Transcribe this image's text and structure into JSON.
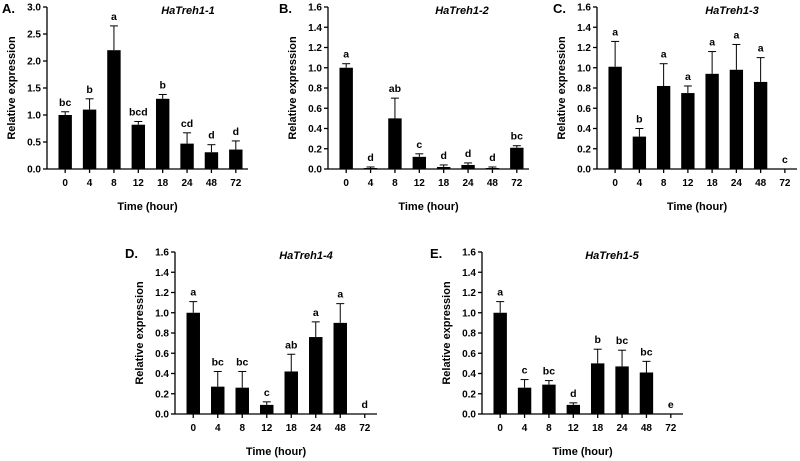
{
  "figure": {
    "xlabel": "Time (hour)",
    "ylabel": "Relative expression"
  },
  "chart_data": [
    {
      "type": "bar",
      "panel": "A.",
      "title": "HaTreh1-1",
      "xlabel": "Time (hour)",
      "ylabel": "Relative expression",
      "categories": [
        "0",
        "4",
        "8",
        "12",
        "18",
        "24",
        "48",
        "72"
      ],
      "values": [
        1.0,
        1.1,
        2.2,
        0.82,
        1.3,
        0.47,
        0.31,
        0.36
      ],
      "errors": [
        0.06,
        0.2,
        0.45,
        0.06,
        0.08,
        0.2,
        0.14,
        0.16
      ],
      "significance": [
        "bc",
        "b",
        "a",
        "bcd",
        "b",
        "cd",
        "d",
        "d"
      ],
      "ylim": [
        0,
        3.0
      ],
      "yticks": [
        "0.0",
        "0.5",
        "1.0",
        "1.5",
        "2.0",
        "2.5",
        "3.0"
      ]
    },
    {
      "type": "bar",
      "panel": "B.",
      "title": "HaTreh1-2",
      "xlabel": "Time (hour)",
      "ylabel": "Relative expression",
      "categories": [
        "0",
        "4",
        "8",
        "12",
        "18",
        "24",
        "48",
        "72"
      ],
      "values": [
        1.0,
        0.01,
        0.5,
        0.12,
        0.02,
        0.04,
        0.01,
        0.21
      ],
      "errors": [
        0.04,
        0.01,
        0.2,
        0.03,
        0.02,
        0.02,
        0.01,
        0.02
      ],
      "significance": [
        "a",
        "d",
        "ab",
        "c",
        "d",
        "d",
        "d",
        "bc"
      ],
      "ylim": [
        0,
        1.6
      ],
      "yticks": [
        "0.0",
        "0.2",
        "0.4",
        "0.6",
        "0.8",
        "1.0",
        "1.2",
        "1.4",
        "1.6"
      ]
    },
    {
      "type": "bar",
      "panel": "C.",
      "title": "HaTreh1-3",
      "xlabel": "Time (hour)",
      "ylabel": "Relative expression",
      "categories": [
        "0",
        "4",
        "8",
        "12",
        "18",
        "24",
        "48",
        "72"
      ],
      "values": [
        1.01,
        0.32,
        0.82,
        0.75,
        0.94,
        0.98,
        0.86,
        0.0
      ],
      "errors": [
        0.25,
        0.08,
        0.22,
        0.07,
        0.22,
        0.25,
        0.24,
        0.0
      ],
      "significance": [
        "a",
        "b",
        "a",
        "a",
        "a",
        "a",
        "a",
        "c"
      ],
      "ylim": [
        0,
        1.6
      ],
      "yticks": [
        "0.0",
        "0.2",
        "0.4",
        "0.6",
        "0.8",
        "1.0",
        "1.2",
        "1.4",
        "1.6"
      ]
    },
    {
      "type": "bar",
      "panel": "D.",
      "title": "HaTreh1-4",
      "xlabel": "Time (hour)",
      "ylabel": "Relative expression",
      "categories": [
        "0",
        "4",
        "8",
        "12",
        "18",
        "24",
        "48",
        "72"
      ],
      "values": [
        1.0,
        0.27,
        0.26,
        0.09,
        0.42,
        0.76,
        0.9,
        0.0
      ],
      "errors": [
        0.11,
        0.15,
        0.16,
        0.03,
        0.17,
        0.15,
        0.19,
        0.0
      ],
      "significance": [
        "a",
        "bc",
        "bc",
        "c",
        "ab",
        "a",
        "a",
        "d"
      ],
      "ylim": [
        0,
        1.6
      ],
      "yticks": [
        "0.0",
        "0.2",
        "0.4",
        "0.6",
        "0.8",
        "1.0",
        "1.2",
        "1.4",
        "1.6"
      ]
    },
    {
      "type": "bar",
      "panel": "E.",
      "title": "HaTreh1-5",
      "xlabel": "Time (hour)",
      "ylabel": "Relative expression",
      "categories": [
        "0",
        "4",
        "8",
        "12",
        "18",
        "24",
        "48",
        "72"
      ],
      "values": [
        1.0,
        0.26,
        0.29,
        0.09,
        0.5,
        0.47,
        0.41,
        0.0
      ],
      "errors": [
        0.11,
        0.08,
        0.04,
        0.02,
        0.14,
        0.16,
        0.11,
        0.0
      ],
      "significance": [
        "a",
        "c",
        "bc",
        "d",
        "b",
        "bc",
        "bc",
        "e"
      ],
      "ylim": [
        0,
        1.6
      ],
      "yticks": [
        "0.0",
        "0.2",
        "0.4",
        "0.6",
        "0.8",
        "1.0",
        "1.2",
        "1.4",
        "1.6"
      ]
    }
  ]
}
